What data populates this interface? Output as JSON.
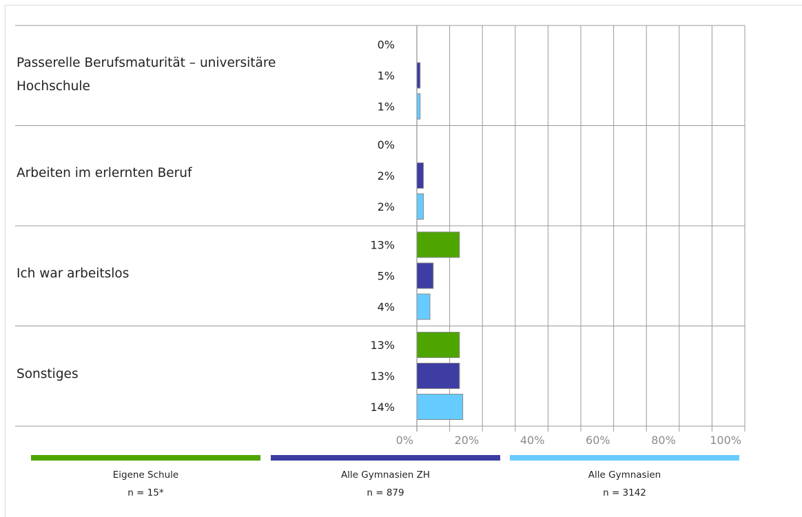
{
  "chart_data": {
    "type": "bar",
    "orientation": "horizontal",
    "categories": [
      "Passerelle Berufsmaturität – universitäre Hochschule",
      "Arbeiten im erlernten Beruf",
      "Ich war arbeitslos",
      "Sonstiges"
    ],
    "series": [
      {
        "name": "Eigene Schule",
        "n_label": "n = 15*",
        "color": "#4ea500",
        "values": [
          0,
          0,
          13,
          13
        ],
        "value_labels": [
          "0%",
          "0%",
          "13%",
          "13%"
        ]
      },
      {
        "name": "Alle Gymnasien ZH",
        "n_label": "n = 879",
        "color": "#3d3da3",
        "values": [
          1,
          2,
          5,
          13
        ],
        "value_labels": [
          "1%",
          "2%",
          "5%",
          "13%"
        ]
      },
      {
        "name": "Alle Gymnasien",
        "n_label": "n = 3142",
        "color": "#66ccff",
        "values": [
          1,
          2,
          4,
          14
        ],
        "value_labels": [
          "1%",
          "2%",
          "4%",
          "14%"
        ]
      }
    ],
    "xlim": [
      0,
      100
    ],
    "xticks": [
      0,
      20,
      40,
      60,
      80,
      100
    ],
    "xtick_labels": [
      "0%",
      "20%",
      "40%",
      "60%",
      "80%",
      "100%"
    ],
    "grid": true,
    "legend_position": "bottom"
  }
}
